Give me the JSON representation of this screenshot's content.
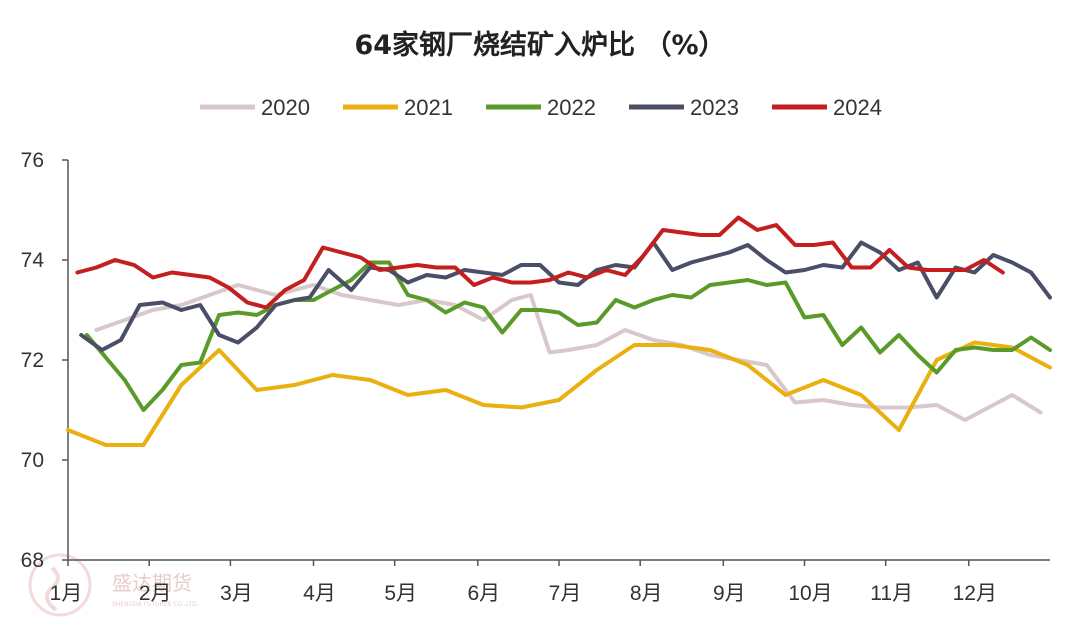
{
  "chart_data": {
    "type": "line",
    "title": "64家钢厂烧结矿入炉比 （%）",
    "xlabel": "",
    "ylabel": "",
    "ylim": [
      68,
      76
    ],
    "yticks": [
      "68",
      "70",
      "72",
      "74",
      "76"
    ],
    "x_axis": {
      "unit": "week of year",
      "range": [
        0,
        52
      ],
      "tick_labels": [
        "1月",
        "2月",
        "3月",
        "4月",
        "5月",
        "6月",
        "7月",
        "8月",
        "9月",
        "10月",
        "11月",
        "12月"
      ],
      "tick_weeks": [
        0,
        4.3,
        8.6,
        13,
        17.3,
        21.7,
        26,
        30.3,
        34.7,
        39,
        43.3,
        47.7
      ]
    },
    "grid": false,
    "legend_position": "top",
    "series": [
      {
        "name": "2020",
        "color": "#d8c8cc",
        "points": [
          [
            1.5,
            72.6
          ],
          [
            3,
            72.8
          ],
          [
            4.5,
            73
          ],
          [
            6,
            73.1
          ],
          [
            7.5,
            73.3
          ],
          [
            9,
            73.5
          ],
          [
            10,
            73.4
          ],
          [
            11,
            73.3
          ],
          [
            12,
            73.4
          ],
          [
            13,
            73.5
          ],
          [
            14.5,
            73.3
          ],
          [
            16,
            73.2
          ],
          [
            17.5,
            73.1
          ],
          [
            19,
            73.2
          ],
          [
            20.5,
            73.1
          ],
          [
            22,
            72.8
          ],
          [
            23.5,
            73.2
          ],
          [
            24.5,
            73.3
          ],
          [
            25.5,
            72.15
          ],
          [
            26.5,
            72.2
          ],
          [
            28,
            72.3
          ],
          [
            29.5,
            72.6
          ],
          [
            31,
            72.4
          ],
          [
            32.5,
            72.3
          ],
          [
            34,
            72.1
          ],
          [
            35.5,
            72
          ],
          [
            37,
            71.9
          ],
          [
            38.5,
            71.15
          ],
          [
            40,
            71.2
          ],
          [
            41.5,
            71.1
          ],
          [
            43,
            71.05
          ],
          [
            44.5,
            71.05
          ],
          [
            46,
            71.1
          ],
          [
            47.5,
            70.8
          ],
          [
            49,
            71.1
          ],
          [
            50,
            71.3
          ],
          [
            51.5,
            70.95
          ]
        ]
      },
      {
        "name": "2021",
        "color": "#eab010",
        "points": [
          [
            0,
            70.6
          ],
          [
            2,
            70.3
          ],
          [
            4,
            70.3
          ],
          [
            6,
            71.5
          ],
          [
            8,
            72.2
          ],
          [
            10,
            71.4
          ],
          [
            12,
            71.5
          ],
          [
            14,
            71.7
          ],
          [
            16,
            71.6
          ],
          [
            18,
            71.3
          ],
          [
            20,
            71.4
          ],
          [
            22,
            71.1
          ],
          [
            24,
            71.05
          ],
          [
            26,
            71.2
          ],
          [
            28,
            71.8
          ],
          [
            30,
            72.3
          ],
          [
            32,
            72.3
          ],
          [
            34,
            72.2
          ],
          [
            36,
            71.9
          ],
          [
            38,
            71.3
          ],
          [
            40,
            71.6
          ],
          [
            42,
            71.3
          ],
          [
            44,
            70.6
          ],
          [
            46,
            72
          ],
          [
            48,
            72.35
          ],
          [
            50,
            72.25
          ],
          [
            52,
            71.85
          ]
        ]
      },
      {
        "name": "2022",
        "color": "#5a9a28",
        "points": [
          [
            1,
            72.5
          ],
          [
            3,
            71.6
          ],
          [
            4,
            71
          ],
          [
            5,
            71.4
          ],
          [
            6,
            71.9
          ],
          [
            7,
            71.95
          ],
          [
            8,
            72.9
          ],
          [
            9,
            72.95
          ],
          [
            10,
            72.9
          ],
          [
            11,
            73.1
          ],
          [
            12,
            73.2
          ],
          [
            13,
            73.2
          ],
          [
            14,
            73.4
          ],
          [
            15,
            73.6
          ],
          [
            16,
            73.95
          ],
          [
            17,
            73.95
          ],
          [
            18,
            73.3
          ],
          [
            19,
            73.2
          ],
          [
            20,
            72.95
          ],
          [
            21,
            73.15
          ],
          [
            22,
            73.05
          ],
          [
            23,
            72.55
          ],
          [
            24,
            73
          ],
          [
            25,
            73
          ],
          [
            26,
            72.95
          ],
          [
            27,
            72.7
          ],
          [
            28,
            72.75
          ],
          [
            29,
            73.2
          ],
          [
            30,
            73.05
          ],
          [
            31,
            73.2
          ],
          [
            32,
            73.3
          ],
          [
            33,
            73.25
          ],
          [
            34,
            73.5
          ],
          [
            35,
            73.55
          ],
          [
            36,
            73.6
          ],
          [
            37,
            73.5
          ],
          [
            38,
            73.55
          ],
          [
            39,
            72.85
          ],
          [
            40,
            72.9
          ],
          [
            41,
            72.3
          ],
          [
            42,
            72.65
          ],
          [
            43,
            72.15
          ],
          [
            44,
            72.5
          ],
          [
            45,
            72.1
          ],
          [
            46,
            71.75
          ],
          [
            47,
            72.2
          ],
          [
            48,
            72.25
          ],
          [
            49,
            72.2
          ],
          [
            50,
            72.2
          ],
          [
            51,
            72.45
          ],
          [
            52,
            72.2
          ]
        ]
      },
      {
        "name": "2023",
        "color": "#4a4e66",
        "points": [
          [
            0.7,
            72.5
          ],
          [
            1.8,
            72.2
          ],
          [
            2.8,
            72.4
          ],
          [
            3.8,
            73.1
          ],
          [
            5,
            73.15
          ],
          [
            6,
            73
          ],
          [
            7,
            73.1
          ],
          [
            8,
            72.5
          ],
          [
            9,
            72.35
          ],
          [
            10,
            72.65
          ],
          [
            11,
            73.1
          ],
          [
            12,
            73.2
          ],
          [
            12.8,
            73.25
          ],
          [
            13.8,
            73.8
          ],
          [
            15,
            73.4
          ],
          [
            16,
            73.85
          ],
          [
            17,
            73.8
          ],
          [
            18,
            73.55
          ],
          [
            19,
            73.7
          ],
          [
            20,
            73.65
          ],
          [
            21,
            73.8
          ],
          [
            22,
            73.75
          ],
          [
            23,
            73.7
          ],
          [
            24,
            73.9
          ],
          [
            25,
            73.9
          ],
          [
            26,
            73.55
          ],
          [
            27,
            73.5
          ],
          [
            28,
            73.8
          ],
          [
            29,
            73.9
          ],
          [
            30,
            73.85
          ],
          [
            31,
            74.35
          ],
          [
            32,
            73.8
          ],
          [
            33,
            73.95
          ],
          [
            34,
            74.05
          ],
          [
            35,
            74.15
          ],
          [
            36,
            74.3
          ],
          [
            37,
            74
          ],
          [
            38,
            73.75
          ],
          [
            39,
            73.8
          ],
          [
            40,
            73.9
          ],
          [
            41,
            73.85
          ],
          [
            42,
            74.35
          ],
          [
            43,
            74.15
          ],
          [
            44,
            73.8
          ],
          [
            45,
            73.95
          ],
          [
            46,
            73.25
          ],
          [
            47,
            73.85
          ],
          [
            48,
            73.75
          ],
          [
            49,
            74.1
          ],
          [
            50,
            73.95
          ],
          [
            51,
            73.75
          ],
          [
            52,
            73.25
          ]
        ]
      },
      {
        "name": "2024",
        "color": "#c41e1e",
        "points": [
          [
            0.5,
            73.75
          ],
          [
            1.5,
            73.85
          ],
          [
            2.5,
            74
          ],
          [
            3.5,
            73.9
          ],
          [
            4.5,
            73.65
          ],
          [
            5.5,
            73.75
          ],
          [
            6.5,
            73.7
          ],
          [
            7.5,
            73.65
          ],
          [
            8.5,
            73.45
          ],
          [
            9.5,
            73.15
          ],
          [
            10.5,
            73.05
          ],
          [
            11.5,
            73.4
          ],
          [
            12.5,
            73.6
          ],
          [
            13.5,
            74.25
          ],
          [
            14.5,
            74.15
          ],
          [
            15.5,
            74.05
          ],
          [
            16.5,
            73.8
          ],
          [
            17.5,
            73.85
          ],
          [
            18.5,
            73.9
          ],
          [
            19.5,
            73.85
          ],
          [
            20.5,
            73.85
          ],
          [
            21.5,
            73.5
          ],
          [
            22.5,
            73.65
          ],
          [
            23.5,
            73.55
          ],
          [
            24.5,
            73.55
          ],
          [
            25.5,
            73.6
          ],
          [
            26.5,
            73.75
          ],
          [
            27.5,
            73.65
          ],
          [
            28.5,
            73.8
          ],
          [
            29.5,
            73.7
          ],
          [
            30.5,
            74.1
          ],
          [
            31.5,
            74.6
          ],
          [
            32.5,
            74.55
          ],
          [
            33.5,
            74.5
          ],
          [
            34.5,
            74.5
          ],
          [
            35.5,
            74.85
          ],
          [
            36.5,
            74.6
          ],
          [
            37.5,
            74.7
          ],
          [
            38.5,
            74.3
          ],
          [
            39.5,
            74.3
          ],
          [
            40.5,
            74.35
          ],
          [
            41.5,
            73.85
          ],
          [
            42.5,
            73.85
          ],
          [
            43.5,
            74.2
          ],
          [
            44.5,
            73.85
          ],
          [
            45.5,
            73.8
          ],
          [
            46.5,
            73.8
          ],
          [
            47.5,
            73.8
          ],
          [
            48.5,
            74
          ],
          [
            49.5,
            73.75
          ]
        ]
      }
    ]
  },
  "watermark": {
    "text": "盛达期货",
    "subtext": "SHENGDA FUTURES CO.,LTD."
  }
}
